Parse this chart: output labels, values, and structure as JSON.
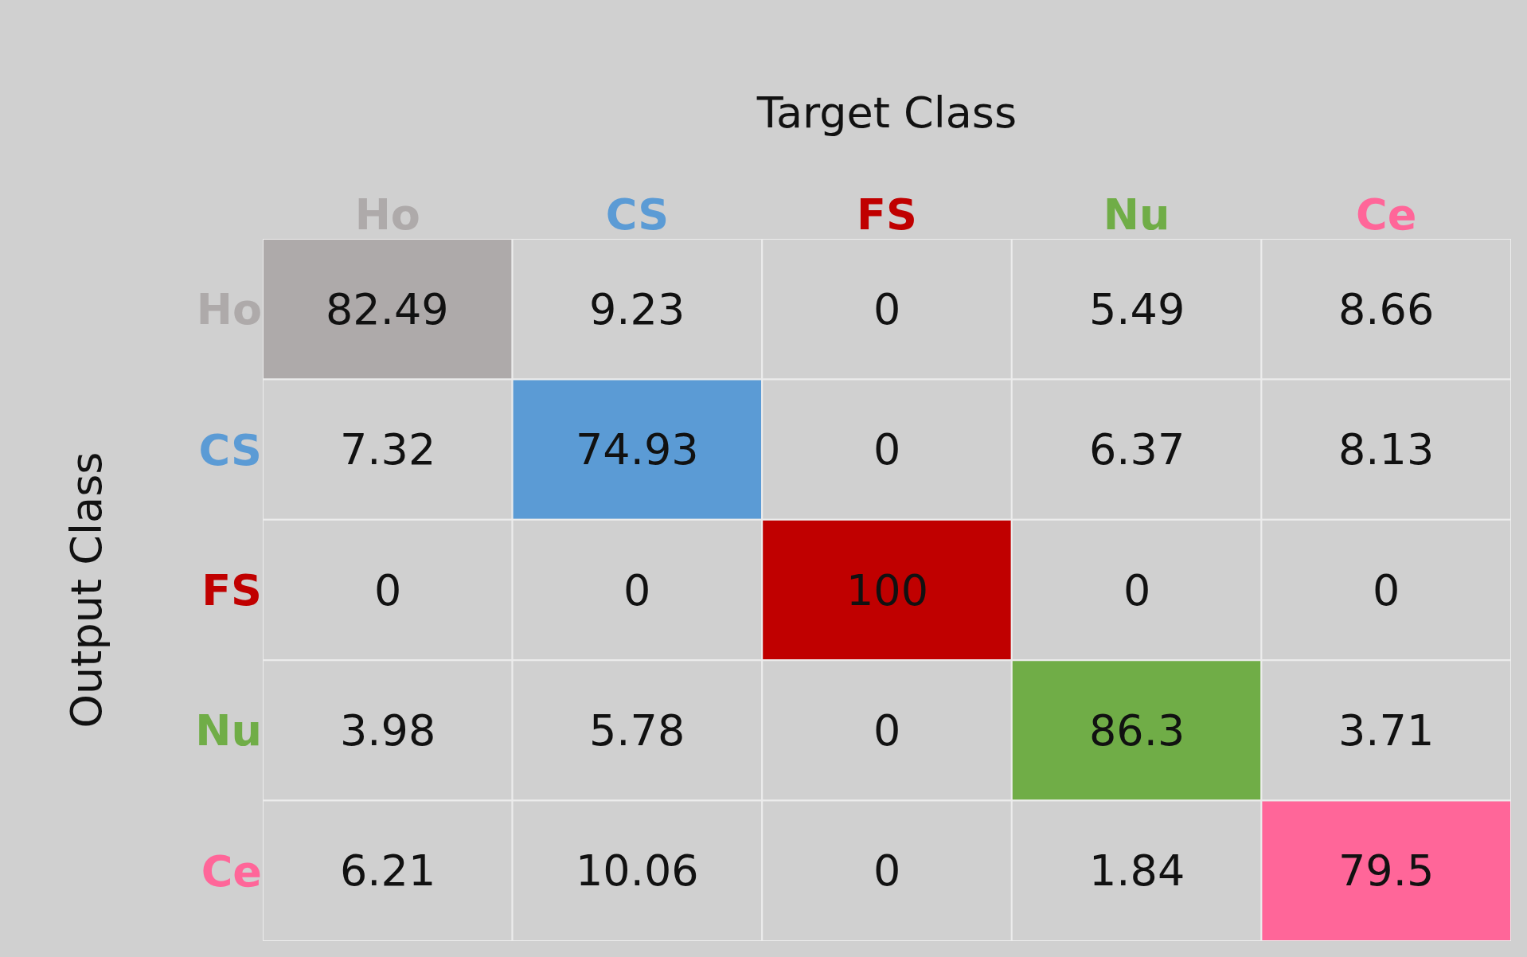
{
  "chart_data": {
    "type": "heatmap",
    "xlabel": "Target Class",
    "ylabel": "Output Class",
    "categories": [
      "Ho",
      "CS",
      "FS",
      "Nu",
      "Ce"
    ],
    "y_categories": [
      "Ho",
      "CS",
      "FS",
      "Nu",
      "Ce"
    ],
    "colors": [
      "#aeaaaa",
      "#5b9bd5",
      "#c00000",
      "#70ad47",
      "#ff6699"
    ],
    "cells": [
      [
        82.49,
        9.23,
        0,
        5.49,
        8.66
      ],
      [
        7.32,
        74.93,
        0,
        6.37,
        8.13
      ],
      [
        0,
        0,
        100,
        0,
        0
      ],
      [
        3.98,
        5.78,
        0,
        86.3,
        3.71
      ],
      [
        6.21,
        10.06,
        0,
        1.84,
        79.5
      ]
    ],
    "data_labels": true
  }
}
